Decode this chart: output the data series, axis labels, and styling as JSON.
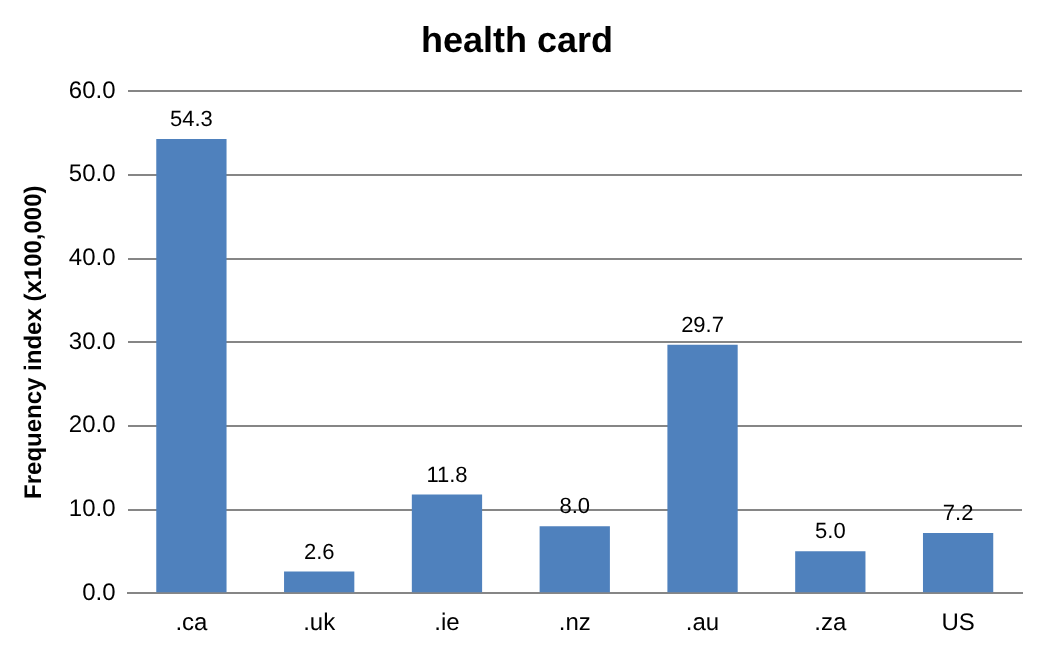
{
  "chart_data": {
    "type": "bar",
    "title": "health card",
    "ylabel": "Frequency index (x100,000)",
    "categories": [
      ".ca",
      ".uk",
      ".ie",
      ".nz",
      ".au",
      ".za",
      "US"
    ],
    "values": [
      54.3,
      2.6,
      11.8,
      8.0,
      29.7,
      5.0,
      7.2
    ],
    "value_labels": [
      "54.3",
      "2.6",
      "11.8",
      "8.0",
      "29.7",
      "5.0",
      "7.2"
    ],
    "color": "#4f81bd",
    "ylim": [
      0,
      60
    ],
    "yticks": [
      {
        "value": 0,
        "label": "0.0"
      },
      {
        "value": 10,
        "label": "10.0"
      },
      {
        "value": 20,
        "label": "20.0"
      },
      {
        "value": 30,
        "label": "30.0"
      },
      {
        "value": 40,
        "label": "40.0"
      },
      {
        "value": 50,
        "label": "50.0"
      },
      {
        "value": 60,
        "label": "60.0"
      }
    ],
    "grid": "y",
    "legend": false
  }
}
